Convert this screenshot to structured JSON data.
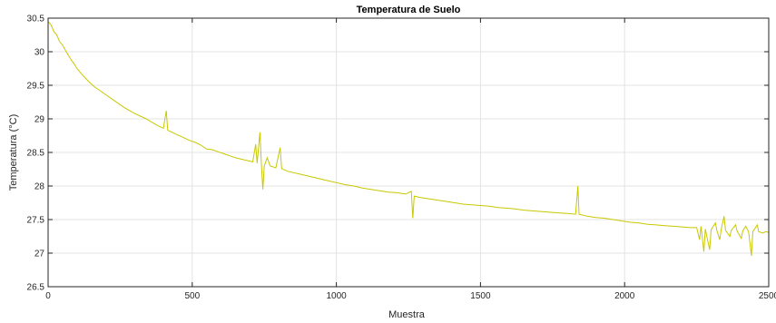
{
  "chart_data": {
    "type": "line",
    "title": "Temperatura de Suelo",
    "xlabel": "Muestra",
    "ylabel": "Temperatura (°C)",
    "xlim": [
      0,
      2500
    ],
    "ylim": [
      26.5,
      30.5
    ],
    "x_ticks": [
      0,
      500,
      1000,
      1500,
      2000,
      2500
    ],
    "y_ticks": [
      26.5,
      27,
      27.5,
      28,
      28.5,
      29,
      29.5,
      30,
      30.5
    ],
    "grid": true,
    "series": [
      {
        "color": "#c8c800",
        "points": [
          [
            0,
            30.45
          ],
          [
            10,
            30.4
          ],
          [
            20,
            30.3
          ],
          [
            30,
            30.25
          ],
          [
            40,
            30.15
          ],
          [
            50,
            30.1
          ],
          [
            60,
            30.02
          ],
          [
            70,
            29.95
          ],
          [
            80,
            29.88
          ],
          [
            90,
            29.82
          ],
          [
            100,
            29.75
          ],
          [
            120,
            29.65
          ],
          [
            140,
            29.56
          ],
          [
            160,
            29.48
          ],
          [
            180,
            29.42
          ],
          [
            200,
            29.36
          ],
          [
            220,
            29.3
          ],
          [
            240,
            29.24
          ],
          [
            260,
            29.18
          ],
          [
            280,
            29.13
          ],
          [
            300,
            29.08
          ],
          [
            320,
            29.04
          ],
          [
            340,
            29.0
          ],
          [
            360,
            28.95
          ],
          [
            380,
            28.9
          ],
          [
            400,
            28.86
          ],
          [
            410,
            29.12
          ],
          [
            415,
            28.83
          ],
          [
            430,
            28.8
          ],
          [
            450,
            28.76
          ],
          [
            470,
            28.72
          ],
          [
            490,
            28.68
          ],
          [
            510,
            28.65
          ],
          [
            530,
            28.61
          ],
          [
            550,
            28.55
          ],
          [
            570,
            28.54
          ],
          [
            590,
            28.51
          ],
          [
            610,
            28.48
          ],
          [
            630,
            28.45
          ],
          [
            650,
            28.42
          ],
          [
            670,
            28.4
          ],
          [
            690,
            28.38
          ],
          [
            710,
            28.36
          ],
          [
            720,
            28.62
          ],
          [
            725,
            28.34
          ],
          [
            735,
            28.8
          ],
          [
            740,
            28.33
          ],
          [
            745,
            27.95
          ],
          [
            750,
            28.3
          ],
          [
            760,
            28.42
          ],
          [
            770,
            28.3
          ],
          [
            790,
            28.27
          ],
          [
            805,
            28.57
          ],
          [
            810,
            28.26
          ],
          [
            830,
            28.22
          ],
          [
            850,
            28.2
          ],
          [
            880,
            28.17
          ],
          [
            910,
            28.14
          ],
          [
            940,
            28.11
          ],
          [
            970,
            28.08
          ],
          [
            1000,
            28.05
          ],
          [
            1030,
            28.02
          ],
          [
            1060,
            28.0
          ],
          [
            1090,
            27.97
          ],
          [
            1120,
            27.95
          ],
          [
            1150,
            27.93
          ],
          [
            1180,
            27.91
          ],
          [
            1210,
            27.9
          ],
          [
            1240,
            27.88
          ],
          [
            1260,
            27.92
          ],
          [
            1265,
            27.52
          ],
          [
            1270,
            27.85
          ],
          [
            1290,
            27.83
          ],
          [
            1320,
            27.81
          ],
          [
            1350,
            27.79
          ],
          [
            1380,
            27.77
          ],
          [
            1410,
            27.75
          ],
          [
            1440,
            27.73
          ],
          [
            1470,
            27.72
          ],
          [
            1500,
            27.71
          ],
          [
            1530,
            27.7
          ],
          [
            1560,
            27.68
          ],
          [
            1590,
            27.67
          ],
          [
            1620,
            27.66
          ],
          [
            1650,
            27.64
          ],
          [
            1680,
            27.63
          ],
          [
            1710,
            27.62
          ],
          [
            1740,
            27.61
          ],
          [
            1770,
            27.6
          ],
          [
            1800,
            27.59
          ],
          [
            1830,
            27.58
          ],
          [
            1838,
            28.0
          ],
          [
            1842,
            27.58
          ],
          [
            1870,
            27.55
          ],
          [
            1900,
            27.53
          ],
          [
            1930,
            27.52
          ],
          [
            1960,
            27.5
          ],
          [
            1990,
            27.48
          ],
          [
            2020,
            27.46
          ],
          [
            2050,
            27.45
          ],
          [
            2080,
            27.43
          ],
          [
            2110,
            27.42
          ],
          [
            2140,
            27.41
          ],
          [
            2170,
            27.4
          ],
          [
            2200,
            27.39
          ],
          [
            2230,
            27.38
          ],
          [
            2250,
            27.38
          ],
          [
            2260,
            27.2
          ],
          [
            2265,
            27.4
          ],
          [
            2275,
            27.02
          ],
          [
            2280,
            27.36
          ],
          [
            2295,
            27.05
          ],
          [
            2300,
            27.35
          ],
          [
            2315,
            27.45
          ],
          [
            2320,
            27.34
          ],
          [
            2330,
            27.2
          ],
          [
            2335,
            27.35
          ],
          [
            2345,
            27.55
          ],
          [
            2350,
            27.34
          ],
          [
            2365,
            27.25
          ],
          [
            2370,
            27.34
          ],
          [
            2385,
            27.42
          ],
          [
            2390,
            27.33
          ],
          [
            2405,
            27.22
          ],
          [
            2410,
            27.33
          ],
          [
            2420,
            27.4
          ],
          [
            2430,
            27.32
          ],
          [
            2440,
            26.96
          ],
          [
            2445,
            27.32
          ],
          [
            2460,
            27.42
          ],
          [
            2465,
            27.32
          ],
          [
            2480,
            27.3
          ],
          [
            2490,
            27.32
          ],
          [
            2500,
            27.31
          ]
        ]
      }
    ]
  }
}
